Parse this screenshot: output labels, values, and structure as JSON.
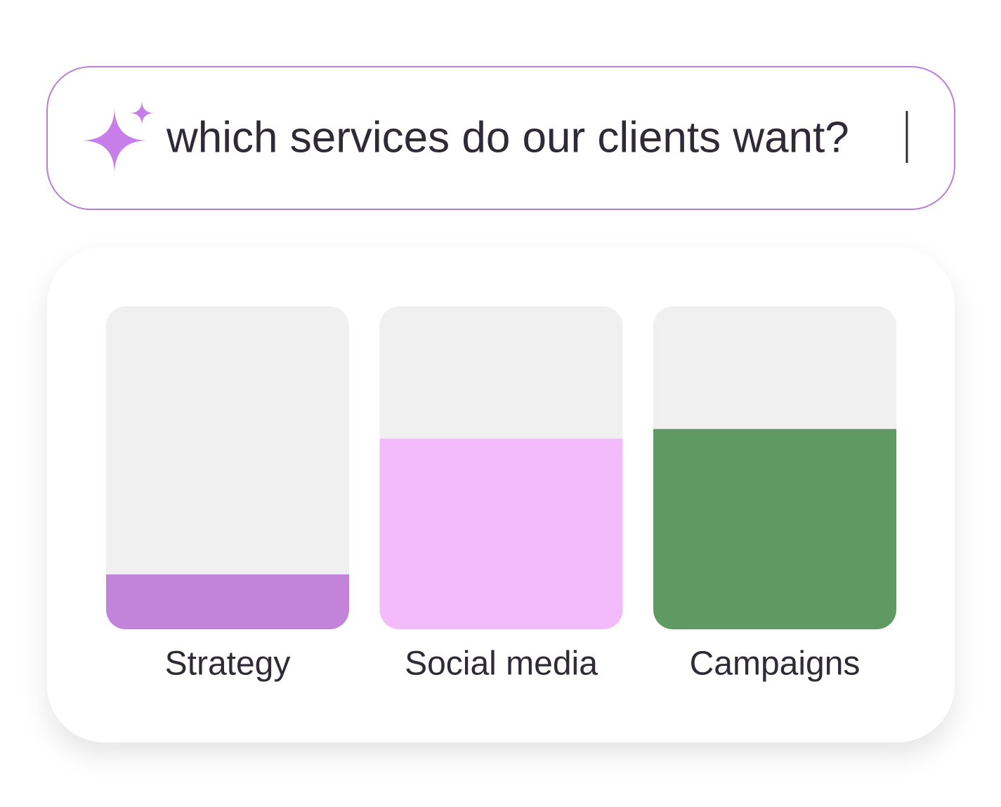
{
  "search": {
    "query": "which services do our clients want?"
  },
  "chart_data": {
    "type": "bar",
    "categories": [
      "Strategy",
      "Social media",
      "Campaigns"
    ],
    "values": [
      17,
      59,
      62
    ],
    "colors": [
      "#c383d9",
      "#f3bbf9",
      "#5f9a62"
    ],
    "ylim": [
      0,
      100
    ]
  }
}
